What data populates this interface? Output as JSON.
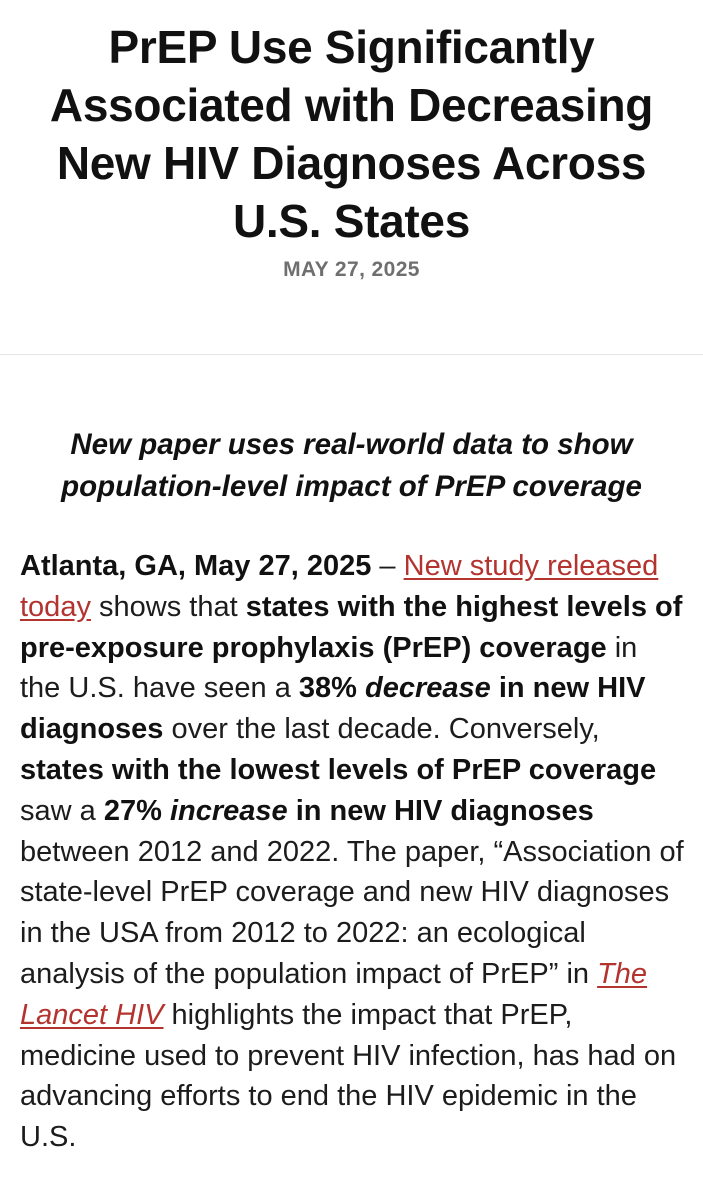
{
  "article": {
    "title": "PrEP Use Significantly Associated with Decreasing New HIV Diagnoses Across U.S. States",
    "date": "MAY 27, 2025",
    "subtitle": "New paper uses real-world data to show population-level impact of PrEP coverage",
    "body": {
      "dateline": "Atlanta, GA, May 27, 2025",
      "dash": " – ",
      "link_study": "New study released today",
      "t1": " shows that ",
      "b1": "states with the highest levels of pre-exposure prophylaxis (PrEP) coverage",
      "t2": " in the U.S. have seen a ",
      "b2a": "38% ",
      "b2i": "decrease",
      "b2b": " in new HIV diagnoses",
      "t3": " over the last decade. Conversely, ",
      "b3": "states with the lowest levels of PrEP coverage",
      "t4": " saw a ",
      "b4a": "27% ",
      "b4i": "increase",
      "b4b": " in new HIV diagnoses",
      "t5": " between 2012 and 2022. The paper, “Association of state-level PrEP coverage and new HIV diagnoses in the USA from 2012 to 2022: an ecological analysis of the population impact of PrEP” in ",
      "link_journal": "The Lancet HIV",
      "t6": " highlights the impact that PrEP, medicine used to prevent HIV infection, has had on advancing efforts to end the HIV epidemic in the U.S."
    }
  }
}
